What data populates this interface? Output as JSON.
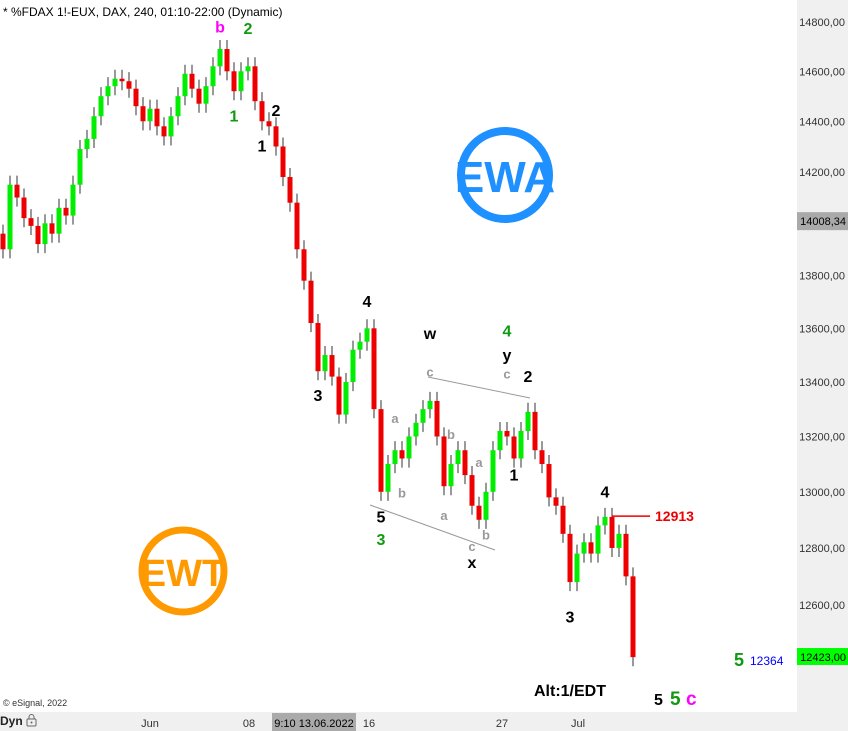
{
  "header": {
    "title": "* %FDAX 1!-EUX, DAX, 240, 01:10-22:00 (Dynamic)"
  },
  "footer": {
    "copyright": "© eSignal, 2022",
    "mode": "Dyn",
    "mode_icon": "lock-icon"
  },
  "logos": {
    "ewa": "EWA",
    "ewt": "EWT",
    "ewa_color": "#1e90ff",
    "ewt_color": "#ff9900"
  },
  "chart_data": {
    "type": "candlestick",
    "note": "open of each candle equals previous close",
    "close": [
      13900,
      14150,
      14100,
      14020,
      13990,
      13920,
      14000,
      13960,
      14060,
      14030,
      14150,
      14290,
      14330,
      14420,
      14500,
      14540,
      14570,
      14560,
      14530,
      14460,
      14400,
      14450,
      14380,
      14340,
      14420,
      14500,
      14590,
      14530,
      14470,
      14540,
      14620,
      14690,
      14600,
      14520,
      14600,
      14620,
      14480,
      14400,
      14380,
      14300,
      14180,
      14080,
      13900,
      13780,
      13620,
      13440,
      13500,
      13420,
      13280,
      13400,
      13520,
      13550,
      13600,
      13300,
      13000,
      13100,
      13150,
      13120,
      13200,
      13250,
      13300,
      13330,
      13200,
      13020,
      13100,
      13150,
      13060,
      12950,
      12900,
      13000,
      13150,
      13220,
      13200,
      13120,
      13220,
      13290,
      13150,
      13100,
      12980,
      12950,
      12850,
      12680,
      12780,
      12820,
      12780,
      12880,
      12910,
      12800,
      12850,
      12700,
      12420
    ],
    "y_scale": "log",
    "ylim": [
      12380,
      14860
    ],
    "y_ticks": [
      "14800,00",
      "14600,00",
      "14400,00",
      "14200,00",
      "13800,00",
      "13600,00",
      "13400,00",
      "13200,00",
      "13000,00",
      "12800,00",
      "12600,00"
    ],
    "y_tick_values": [
      14800,
      14600,
      14400,
      14200,
      13800,
      13600,
      13400,
      13200,
      13000,
      12800,
      12600
    ],
    "x_ticks": [
      "Jun",
      "08",
      "16",
      "27",
      "Jul"
    ],
    "crosshair_time": "9:10 13.06.2022",
    "crosshair_price": "14008,34",
    "last_price": "12423,00",
    "up_color": "#00ee00",
    "down_color": "#ee0000",
    "level_line": {
      "value": 12913,
      "label": "12913",
      "color": "#ee0000"
    },
    "target": {
      "wave": "5",
      "label": "12364"
    },
    "alt_label": "Alt:1/EDT",
    "bottom_labels": [
      "5",
      "5",
      "c"
    ],
    "wave_labels": [
      {
        "t": "b",
        "c": "#ff00ff",
        "i": 31,
        "p": 14790
      },
      {
        "t": "2",
        "c": "#119911",
        "i": 35,
        "p": 14760
      },
      {
        "t": "1",
        "c": "#119911",
        "i": 33,
        "p": 14400
      },
      {
        "t": "2",
        "c": "#000000",
        "i": 39,
        "p": 14420
      },
      {
        "t": "1",
        "c": "#000000",
        "i": 37,
        "p": 14280
      },
      {
        "t": "4",
        "c": "#000000",
        "i": 52,
        "p": 13680
      },
      {
        "t": "3",
        "c": "#000000",
        "i": 45,
        "p": 13330
      },
      {
        "t": "5",
        "c": "#000000",
        "i": 54,
        "p": 12890
      },
      {
        "t": "3",
        "c": "#119911",
        "i": 54,
        "p": 12810
      },
      {
        "t": "w",
        "c": "#000000",
        "i": 61,
        "p": 13560
      },
      {
        "t": "c",
        "c": "#999999",
        "i": 61,
        "p": 13420
      },
      {
        "t": "a",
        "c": "#999999",
        "i": 56,
        "p": 13250
      },
      {
        "t": "b",
        "c": "#999999",
        "i": 57,
        "p": 12980
      },
      {
        "t": "b",
        "c": "#999999",
        "i": 64,
        "p": 13190
      },
      {
        "t": "a",
        "c": "#999999",
        "i": 63,
        "p": 12900
      },
      {
        "t": "a",
        "c": "#999999",
        "i": 68,
        "p": 13090
      },
      {
        "t": "b",
        "c": "#999999",
        "i": 69,
        "p": 12830
      },
      {
        "t": "c",
        "c": "#999999",
        "i": 67,
        "p": 12790
      },
      {
        "t": "x",
        "c": "#000000",
        "i": 67,
        "p": 12730
      },
      {
        "t": "4",
        "c": "#119911",
        "i": 72,
        "p": 13570
      },
      {
        "t": "y",
        "c": "#000000",
        "i": 72,
        "p": 13480
      },
      {
        "t": "c",
        "c": "#999999",
        "i": 72,
        "p": 13420
      },
      {
        "t": "2",
        "c": "#000000",
        "i": 75,
        "p": 13400
      },
      {
        "t": "1",
        "c": "#000000",
        "i": 73,
        "p": 13040
      },
      {
        "t": "4",
        "c": "#000000",
        "i": 86,
        "p": 12980
      },
      {
        "t": "3",
        "c": "#000000",
        "i": 81,
        "p": 12540
      }
    ]
  }
}
